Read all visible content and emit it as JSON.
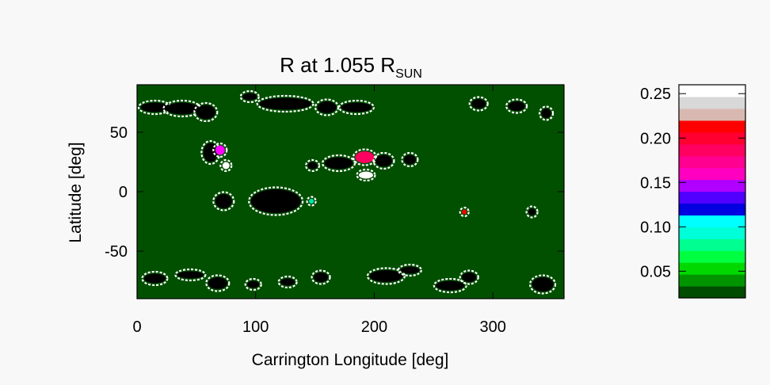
{
  "chart_data": [
    {
      "type": "heatmap",
      "title_main": "R  at 1.055 R",
      "title_sub": "SUN",
      "xlabel": "Carrington Longitude [deg]",
      "ylabel": "Latitude [deg]",
      "xlim": [
        0,
        360
      ],
      "ylim": [
        -90,
        90
      ],
      "xticks": [
        0,
        100,
        200,
        300
      ],
      "yticks": [
        50,
        0,
        -50
      ],
      "background_color": "#005000",
      "features": [
        {
          "lon": 15,
          "lat": 71,
          "rlon": 12,
          "rlat": 4,
          "color": "#000000"
        },
        {
          "lon": 38,
          "lat": 70,
          "rlon": 14,
          "rlat": 5,
          "color": "#000000"
        },
        {
          "lon": 58,
          "lat": 67,
          "rlon": 8,
          "rlat": 6,
          "color": "#000000"
        },
        {
          "lon": 95,
          "lat": 80,
          "rlon": 6,
          "rlat": 3,
          "color": "#000000"
        },
        {
          "lon": 125,
          "lat": 74,
          "rlon": 22,
          "rlat": 5,
          "color": "#000000"
        },
        {
          "lon": 160,
          "lat": 71,
          "rlon": 8,
          "rlat": 5,
          "color": "#000000"
        },
        {
          "lon": 185,
          "lat": 71,
          "rlon": 13,
          "rlat": 4,
          "color": "#000000"
        },
        {
          "lon": 288,
          "lat": 74,
          "rlon": 6,
          "rlat": 4,
          "color": "#000000"
        },
        {
          "lon": 320,
          "lat": 72,
          "rlon": 7,
          "rlat": 4,
          "color": "#000000"
        },
        {
          "lon": 345,
          "lat": 66,
          "rlon": 4,
          "rlat": 4,
          "color": "#000000"
        },
        {
          "lon": 62,
          "lat": 33,
          "rlon": 6,
          "rlat": 8,
          "color": "#000000"
        },
        {
          "lon": 70,
          "lat": 35,
          "rlon": 4,
          "rlat": 4,
          "color": "#ff00ff"
        },
        {
          "lon": 75,
          "lat": 22,
          "rlon": 3,
          "rlat": 3,
          "color": "#ffffff"
        },
        {
          "lon": 148,
          "lat": 22,
          "rlon": 4,
          "rlat": 3,
          "color": "#000000"
        },
        {
          "lon": 170,
          "lat": 24,
          "rlon": 12,
          "rlat": 5,
          "color": "#000000"
        },
        {
          "lon": 192,
          "lat": 29,
          "rlon": 8,
          "rlat": 5,
          "color": "#ff0060"
        },
        {
          "lon": 208,
          "lat": 26,
          "rlon": 7,
          "rlat": 5,
          "color": "#000000"
        },
        {
          "lon": 230,
          "lat": 27,
          "rlon": 5,
          "rlat": 4,
          "color": "#000000"
        },
        {
          "lon": 193,
          "lat": 14,
          "rlon": 6,
          "rlat": 3,
          "color": "#ffffff"
        },
        {
          "lon": 73,
          "lat": -8,
          "rlon": 7,
          "rlat": 6,
          "color": "#000000"
        },
        {
          "lon": 117,
          "lat": -8,
          "rlon": 21,
          "rlat": 10,
          "color": "#000000"
        },
        {
          "lon": 147,
          "lat": -8,
          "rlon": 2,
          "rlat": 2,
          "color": "#00e8b0"
        },
        {
          "lon": 276,
          "lat": -17,
          "rlon": 2,
          "rlat": 2,
          "color": "#ff0000"
        },
        {
          "lon": 333,
          "lat": -17,
          "rlon": 3,
          "rlat": 3,
          "color": "#000000"
        },
        {
          "lon": 15,
          "lat": -73,
          "rlon": 9,
          "rlat": 4,
          "color": "#000000"
        },
        {
          "lon": 45,
          "lat": -70,
          "rlon": 11,
          "rlat": 3,
          "color": "#000000"
        },
        {
          "lon": 68,
          "lat": -77,
          "rlon": 8,
          "rlat": 5,
          "color": "#000000"
        },
        {
          "lon": 98,
          "lat": -78,
          "rlon": 5,
          "rlat": 3,
          "color": "#000000"
        },
        {
          "lon": 127,
          "lat": -76,
          "rlon": 6,
          "rlat": 3,
          "color": "#000000"
        },
        {
          "lon": 155,
          "lat": -72,
          "rlon": 6,
          "rlat": 4,
          "color": "#000000"
        },
        {
          "lon": 210,
          "lat": -71,
          "rlon": 14,
          "rlat": 5,
          "color": "#000000"
        },
        {
          "lon": 230,
          "lat": -66,
          "rlon": 8,
          "rlat": 3,
          "color": "#000000"
        },
        {
          "lon": 264,
          "lat": -79,
          "rlon": 12,
          "rlat": 4,
          "color": "#000000"
        },
        {
          "lon": 280,
          "lat": -72,
          "rlon": 6,
          "rlat": 4,
          "color": "#000000"
        },
        {
          "lon": 342,
          "lat": -78,
          "rlon": 9,
          "rlat": 6,
          "color": "#000000"
        }
      ]
    },
    {
      "type": "heatmap",
      "title": "",
      "colorbar": true,
      "vlim": [
        0.02,
        0.26
      ],
      "ticks": [
        0.05,
        0.1,
        0.15,
        0.2,
        0.25
      ],
      "tick_labels": [
        "0.05",
        "0.10",
        "0.15",
        "0.20",
        "0.25"
      ],
      "colors": [
        "#004c00",
        "#009400",
        "#00d800",
        "#00ff40",
        "#00ff90",
        "#00ffd8",
        "#00ffff",
        "#0000e0",
        "#5000ff",
        "#b000ff",
        "#ff00c0",
        "#ff0090",
        "#ff0060",
        "#ff0030",
        "#ff0000",
        "#d8b8b0",
        "#d8d8d8",
        "#ffffff"
      ]
    }
  ]
}
